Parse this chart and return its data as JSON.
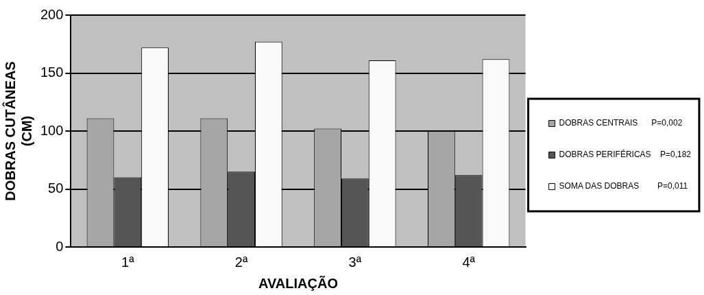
{
  "chart_data": {
    "type": "bar",
    "xlabel": "AVALIAÇÃO",
    "ylabel": "DOBRAS CUTÂNEAS (CM)",
    "categories": [
      "1ª",
      "2ª",
      "3ª",
      "4ª"
    ],
    "series": [
      {
        "name": "DOBRAS CENTRAIS      P=0,002",
        "color": "#a6a6a6",
        "values": [
          111,
          111,
          102,
          100
        ]
      },
      {
        "name": "DOBRAS PERIFÉRICAS    P=0,182",
        "color": "#555555",
        "values": [
          60,
          65,
          59,
          62
        ]
      },
      {
        "name": "SOMA DAS DOBRAS        P=0,011",
        "color": "#f9f9f9",
        "values": [
          172,
          177,
          161,
          162
        ]
      }
    ],
    "ylim": [
      0,
      200
    ],
    "yticks": [
      0,
      50,
      100,
      150,
      200
    ],
    "grid": "y",
    "legend": "right"
  }
}
